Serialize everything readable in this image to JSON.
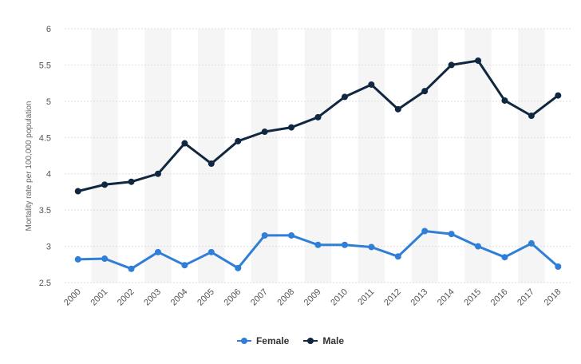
{
  "colors": {
    "female": "#2f7ed8",
    "male": "#0f2740",
    "band": "#f5f5f5",
    "grid": "#dddddd"
  },
  "chart_data": {
    "type": "line",
    "title": "",
    "xlabel": "",
    "ylabel": "Mortality rate per 100,000 population",
    "categories": [
      "2000",
      "2001",
      "2002",
      "2003",
      "2004",
      "2005",
      "2006",
      "2007",
      "2008",
      "2009",
      "2010",
      "2011",
      "2012",
      "2013",
      "2014",
      "2015",
      "2016",
      "2017",
      "2018"
    ],
    "ylim": [
      2.5,
      6
    ],
    "yticks": [
      "2.5",
      "3",
      "3.5",
      "4",
      "4.5",
      "5",
      "5.5",
      "6"
    ],
    "grid": true,
    "legend_position": "bottom-center",
    "series": [
      {
        "name": "Female",
        "color_key": "female",
        "values": [
          2.82,
          2.83,
          2.69,
          2.92,
          2.74,
          2.92,
          2.7,
          3.15,
          3.15,
          3.02,
          3.02,
          2.99,
          2.86,
          3.21,
          3.17,
          3.0,
          2.85,
          3.04,
          2.72
        ]
      },
      {
        "name": "Male",
        "color_key": "male",
        "values": [
          3.76,
          3.85,
          3.89,
          4.0,
          4.42,
          4.14,
          4.45,
          4.58,
          4.64,
          4.78,
          5.06,
          5.23,
          4.89,
          5.14,
          5.5,
          5.56,
          5.01,
          4.8,
          5.08
        ]
      }
    ]
  }
}
